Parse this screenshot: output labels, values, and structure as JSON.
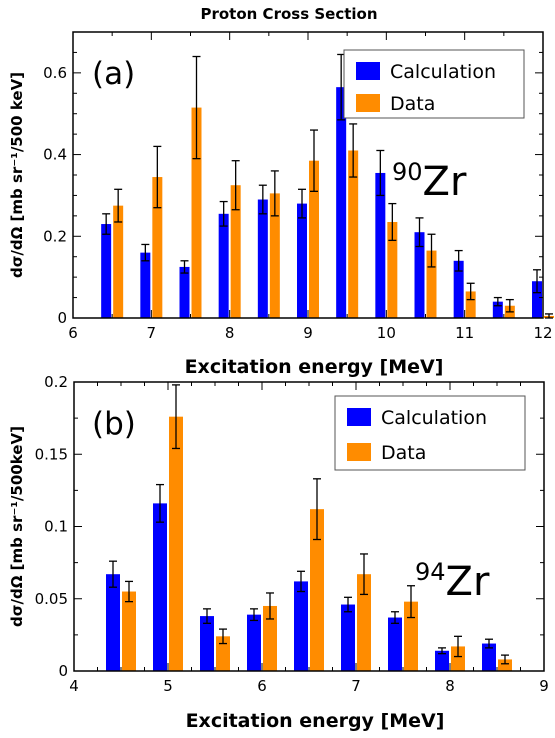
{
  "title": "Proton Cross Section",
  "chart_data": [
    {
      "type": "bar",
      "panel_label": "(a)",
      "nucleus_mass": "90",
      "nucleus_symbol": "Zr",
      "xlabel": "Excitation energy [MeV]",
      "ylabel": "dσ/dΩ [mb sr⁻¹/500 keV]",
      "xlim": [
        6,
        12
      ],
      "ylim": [
        0,
        0.7
      ],
      "xticks": [
        "6",
        "7",
        "8",
        "9",
        "10",
        "11",
        "12"
      ],
      "yticks": [
        "0",
        "0.2",
        "0.4",
        "0.6"
      ],
      "legend_position": "top-right",
      "categories": [
        6.5,
        7.0,
        7.5,
        8.0,
        8.5,
        9.0,
        9.5,
        10.0,
        10.5,
        11.0,
        11.5,
        12.0
      ],
      "series": [
        {
          "name": "Calculation",
          "color": "#0000ff",
          "values": [
            0.23,
            0.16,
            0.125,
            0.255,
            0.29,
            0.28,
            0.565,
            0.355,
            0.21,
            0.14,
            0.04,
            0.09
          ],
          "errors": [
            0.025,
            0.02,
            0.015,
            0.03,
            0.035,
            0.035,
            0.08,
            0.055,
            0.035,
            0.025,
            0.01,
            0.028
          ]
        },
        {
          "name": "Data",
          "color": "#ff8c00",
          "values": [
            0.275,
            0.345,
            0.515,
            0.325,
            0.305,
            0.385,
            0.41,
            0.235,
            0.165,
            0.065,
            0.03,
            0.005
          ],
          "errors": [
            0.04,
            0.075,
            0.125,
            0.06,
            0.055,
            0.075,
            0.065,
            0.045,
            0.04,
            0.02,
            0.015,
            0.005
          ]
        }
      ]
    },
    {
      "type": "bar",
      "panel_label": "(b)",
      "nucleus_mass": "94",
      "nucleus_symbol": "Zr",
      "xlabel": "Excitation energy [MeV]",
      "ylabel": "dσ/dΩ [mb sr⁻¹/500keV]",
      "xlim": [
        4,
        9
      ],
      "ylim": [
        0,
        0.2
      ],
      "xticks": [
        "4",
        "5",
        "6",
        "7",
        "8",
        "9"
      ],
      "yticks": [
        "0",
        "0.05",
        "0.1",
        "0.15",
        "0.2"
      ],
      "legend_position": "top-right",
      "categories": [
        4.5,
        5.0,
        5.5,
        6.0,
        6.5,
        7.0,
        7.5,
        8.0,
        8.5
      ],
      "series": [
        {
          "name": "Calculation",
          "color": "#0000ff",
          "values": [
            0.067,
            0.116,
            0.038,
            0.039,
            0.062,
            0.046,
            0.037,
            0.014,
            0.019
          ],
          "errors": [
            0.009,
            0.013,
            0.005,
            0.004,
            0.007,
            0.005,
            0.004,
            0.002,
            0.003
          ]
        },
        {
          "name": "Data",
          "color": "#ff8c00",
          "values": [
            0.055,
            0.176,
            0.024,
            0.045,
            0.112,
            0.067,
            0.048,
            0.017,
            0.008
          ],
          "errors": [
            0.007,
            0.022,
            0.005,
            0.009,
            0.021,
            0.014,
            0.011,
            0.007,
            0.003
          ]
        }
      ]
    }
  ]
}
